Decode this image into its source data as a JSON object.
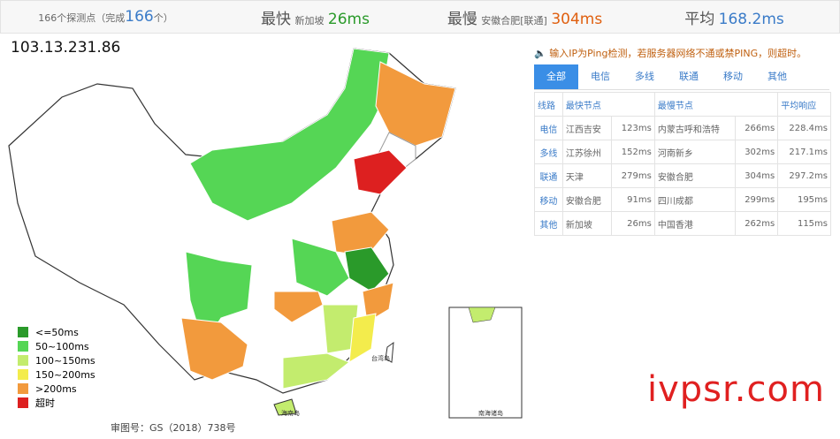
{
  "header": {
    "probe_prefix": "166个探测点（完成",
    "probe_done": "166",
    "probe_suffix": "个）",
    "fastest_label": "最快",
    "fastest_node": "新加坡",
    "fastest_value": "26ms",
    "slowest_label": "最慢",
    "slowest_node": "安徽合肥[联通]",
    "slowest_value": "304ms",
    "average_label": "平均",
    "average_value": "168.2ms"
  },
  "ip": "103.13.231.86",
  "notice": "输入IP为Ping检测，若服务器网络不通或禁PING，则超时。",
  "tabs": [
    "全部",
    "电信",
    "多线",
    "联通",
    "移动",
    "其他"
  ],
  "table": {
    "header": [
      "线路",
      "最快节点",
      "最慢节点",
      "平均响应"
    ],
    "rows": [
      [
        "电信",
        "江西吉安",
        "123ms",
        "内蒙古呼和浩特",
        "266ms",
        "228.4ms"
      ],
      [
        "多线",
        "江苏徐州",
        "152ms",
        "河南新乡",
        "302ms",
        "217.1ms"
      ],
      [
        "联通",
        "天津",
        "279ms",
        "安徽合肥",
        "304ms",
        "297.2ms"
      ],
      [
        "移动",
        "安徽合肥",
        "91ms",
        "四川成都",
        "299ms",
        "195ms"
      ],
      [
        "其他",
        "新加坡",
        "26ms",
        "中国香港",
        "262ms",
        "115ms"
      ]
    ]
  },
  "legend": [
    {
      "label": "<=50ms",
      "color": "#2a9a2a"
    },
    {
      "label": "50~100ms",
      "color": "#55d655"
    },
    {
      "label": "100~150ms",
      "color": "#c3ec6e"
    },
    {
      "label": "150~200ms",
      "color": "#f3ec4c"
    },
    {
      "label": ">200ms",
      "color": "#f29a3d"
    },
    {
      "label": "超时",
      "color": "#dd2020"
    }
  ],
  "map_labels": [
    "台湾岛",
    "海南岛",
    "南海诸岛"
  ],
  "caption": "审图号：GS（2018）738号",
  "watermark": "ivpsr.com"
}
